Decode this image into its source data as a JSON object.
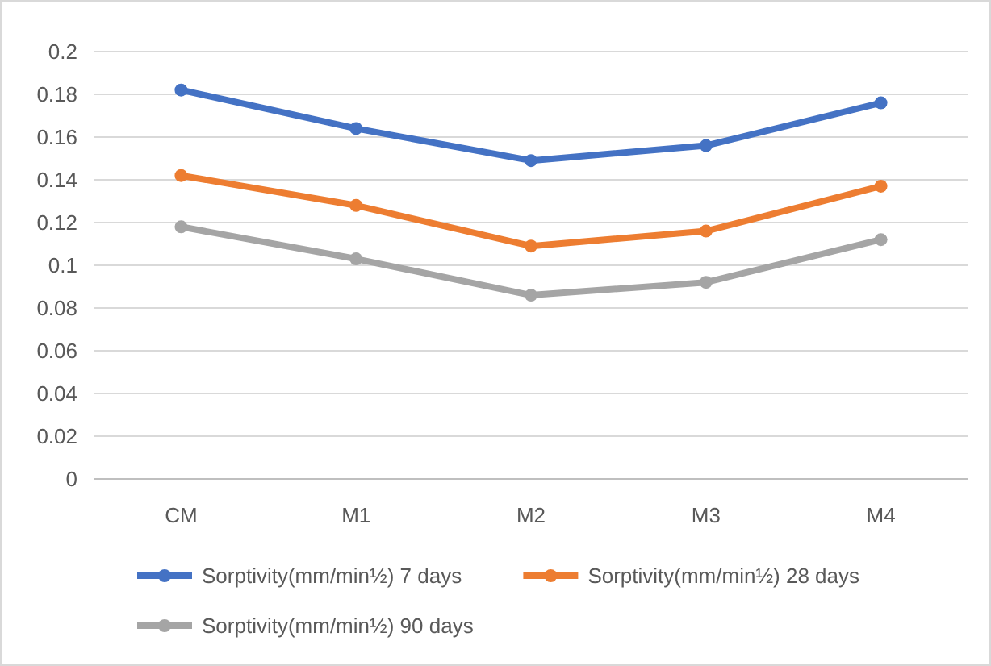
{
  "chart_data": {
    "type": "line",
    "categories": [
      "CM",
      "M1",
      "M2",
      "M3",
      "M4"
    ],
    "series": [
      {
        "name": "Sorptivity(mm/min½) 7 days",
        "color": "#4472c4",
        "values": [
          0.182,
          0.164,
          0.149,
          0.156,
          0.176
        ]
      },
      {
        "name": "Sorptivity(mm/min½) 28 days",
        "color": "#ed7d31",
        "values": [
          0.142,
          0.128,
          0.109,
          0.116,
          0.137
        ]
      },
      {
        "name": "Sorptivity(mm/min½) 90 days",
        "color": "#a5a5a5",
        "values": [
          0.118,
          0.103,
          0.086,
          0.092,
          0.112
        ]
      }
    ],
    "ylim": [
      0,
      0.2
    ],
    "yticks": [
      0,
      0.02,
      0.04,
      0.06,
      0.08,
      0.1,
      0.12,
      0.14,
      0.16,
      0.18,
      0.2
    ],
    "grid": "y",
    "legend": "bottom",
    "marker": "circle",
    "line_style": "solid"
  }
}
